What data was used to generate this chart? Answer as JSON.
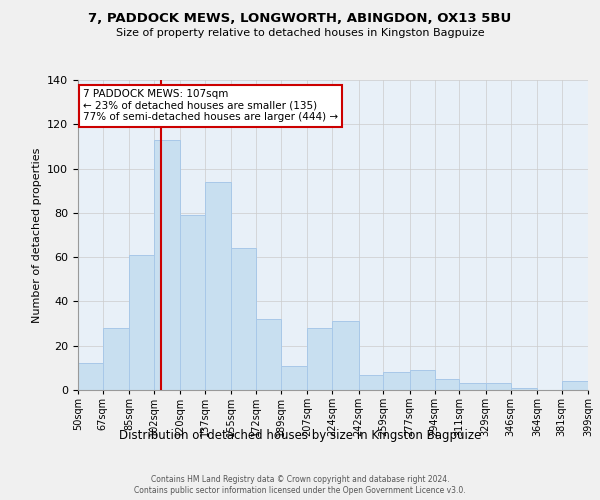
{
  "title": "7, PADDOCK MEWS, LONGWORTH, ABINGDON, OX13 5BU",
  "subtitle": "Size of property relative to detached houses in Kingston Bagpuize",
  "xlabel": "Distribution of detached houses by size in Kingston Bagpuize",
  "ylabel": "Number of detached properties",
  "bar_color": "#c8dff0",
  "bar_edgecolor": "#a8c8e8",
  "vline_x": 107,
  "vline_color": "#cc0000",
  "annotation_line1": "7 PADDOCK MEWS: 107sqm",
  "annotation_line2": "← 23% of detached houses are smaller (135)",
  "annotation_line3": "77% of semi-detached houses are larger (444) →",
  "footer1": "Contains HM Land Registry data © Crown copyright and database right 2024.",
  "footer2": "Contains public sector information licensed under the Open Government Licence v3.0.",
  "bins": [
    50,
    67,
    85,
    102,
    120,
    137,
    155,
    172,
    189,
    207,
    224,
    242,
    259,
    277,
    294,
    311,
    329,
    346,
    364,
    381,
    399
  ],
  "counts": [
    12,
    28,
    61,
    113,
    79,
    94,
    64,
    32,
    11,
    28,
    31,
    7,
    8,
    9,
    5,
    3,
    3,
    1,
    0,
    4
  ],
  "ylim": [
    0,
    140
  ],
  "yticks": [
    0,
    20,
    40,
    60,
    80,
    100,
    120,
    140
  ],
  "background_color": "#f0f0f0",
  "plot_background": "#e8f0f8"
}
